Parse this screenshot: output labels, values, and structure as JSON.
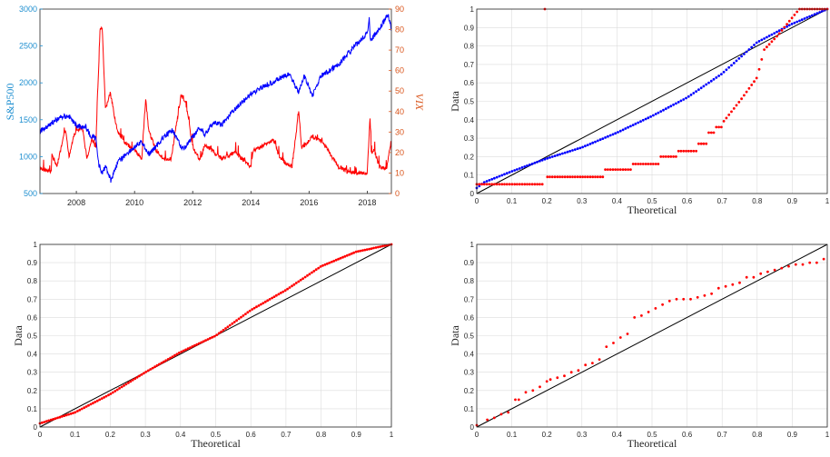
{
  "chart_data": [
    {
      "type": "line",
      "x_axis": {
        "type": "date",
        "range": [
          "2006-10-01",
          "2018-10-31"
        ],
        "ticks": [
          "2008",
          "2010",
          "2012",
          "2014",
          "2016",
          "2018"
        ]
      },
      "y_left": {
        "label": "S&P500",
        "range": [
          500,
          3000
        ],
        "ticks": [
          "500",
          "1000",
          "1500",
          "2000",
          "2500",
          "3000"
        ],
        "color": "#1f8fd0"
      },
      "y_right": {
        "label": "VIX",
        "range": [
          0,
          90
        ],
        "ticks": [
          "0",
          "10",
          "20",
          "30",
          "40",
          "50",
          "60",
          "70",
          "80",
          "90"
        ],
        "color": "#d95319"
      },
      "grid": false,
      "series": [
        {
          "axis": "left",
          "color": "#0000ff",
          "points": [
            [
              "2006-10-01",
              1340
            ],
            [
              "2007-02-01",
              1440
            ],
            [
              "2007-07-01",
              1540
            ],
            [
              "2007-10-01",
              1550
            ],
            [
              "2008-01-01",
              1420
            ],
            [
              "2008-05-01",
              1400
            ],
            [
              "2008-07-01",
              1270
            ],
            [
              "2008-09-01",
              1250
            ],
            [
              "2008-10-10",
              900
            ],
            [
              "2008-11-20",
              760
            ],
            [
              "2009-01-01",
              880
            ],
            [
              "2009-03-09",
              680
            ],
            [
              "2009-06-01",
              920
            ],
            [
              "2009-10-01",
              1050
            ],
            [
              "2010-04-01",
              1200
            ],
            [
              "2010-07-01",
              1030
            ],
            [
              "2010-12-31",
              1260
            ],
            [
              "2011-04-30",
              1360
            ],
            [
              "2011-08-08",
              1120
            ],
            [
              "2011-10-01",
              1130
            ],
            [
              "2011-12-31",
              1260
            ],
            [
              "2012-04-01",
              1400
            ],
            [
              "2012-06-01",
              1300
            ],
            [
              "2012-09-15",
              1460
            ],
            [
              "2012-12-31",
              1430
            ],
            [
              "2013-06-01",
              1630
            ],
            [
              "2013-12-31",
              1850
            ],
            [
              "2014-06-01",
              1950
            ],
            [
              "2014-12-31",
              2060
            ],
            [
              "2015-05-01",
              2120
            ],
            [
              "2015-08-25",
              1870
            ],
            [
              "2015-11-01",
              2090
            ],
            [
              "2016-02-11",
              1830
            ],
            [
              "2016-06-01",
              2090
            ],
            [
              "2016-12-31",
              2240
            ],
            [
              "2017-06-01",
              2430
            ],
            [
              "2017-12-31",
              2680
            ],
            [
              "2018-01-26",
              2870
            ],
            [
              "2018-02-08",
              2580
            ],
            [
              "2018-04-01",
              2640
            ],
            [
              "2018-06-01",
              2720
            ],
            [
              "2018-09-20",
              2930
            ],
            [
              "2018-10-31",
              2710
            ]
          ]
        },
        {
          "axis": "right",
          "color": "#ff0000",
          "points": [
            [
              "2006-10-01",
              12
            ],
            [
              "2007-02-20",
              11
            ],
            [
              "2007-03-01",
              19
            ],
            [
              "2007-05-01",
              13
            ],
            [
              "2007-08-16",
              31
            ],
            [
              "2007-10-01",
              18
            ],
            [
              "2007-11-26",
              28
            ],
            [
              "2008-01-22",
              31
            ],
            [
              "2008-03-17",
              32
            ],
            [
              "2008-05-15",
              17
            ],
            [
              "2008-07-15",
              27
            ],
            [
              "2008-09-01",
              22
            ],
            [
              "2008-10-24",
              80
            ],
            [
              "2008-11-20",
              81
            ],
            [
              "2008-12-31",
              41
            ],
            [
              "2009-03-01",
              49
            ],
            [
              "2009-06-01",
              30
            ],
            [
              "2009-09-01",
              25
            ],
            [
              "2009-12-31",
              21
            ],
            [
              "2010-04-01",
              17
            ],
            [
              "2010-05-20",
              46
            ],
            [
              "2010-07-01",
              30
            ],
            [
              "2010-10-01",
              21
            ],
            [
              "2010-12-31",
              17
            ],
            [
              "2011-04-01",
              16
            ],
            [
              "2011-08-08",
              48
            ],
            [
              "2011-10-03",
              45
            ],
            [
              "2011-12-31",
              23
            ],
            [
              "2012-04-01",
              16
            ],
            [
              "2012-06-01",
              24
            ],
            [
              "2012-12-31",
              17
            ],
            [
              "2013-06-20",
              20
            ],
            [
              "2013-12-31",
              13
            ],
            [
              "2014-02-03",
              21
            ],
            [
              "2014-10-15",
              26
            ],
            [
              "2014-12-31",
              17
            ],
            [
              "2015-06-01",
              13
            ],
            [
              "2015-08-24",
              40
            ],
            [
              "2015-10-01",
              22
            ],
            [
              "2016-02-11",
              28
            ],
            [
              "2016-06-24",
              25
            ],
            [
              "2016-12-31",
              13
            ],
            [
              "2017-06-01",
              10
            ],
            [
              "2017-12-31",
              10
            ],
            [
              "2018-02-05",
              37
            ],
            [
              "2018-02-20",
              20
            ],
            [
              "2018-04-01",
              21
            ],
            [
              "2018-06-01",
              13
            ],
            [
              "2018-09-01",
              12
            ],
            [
              "2018-10-24",
              25
            ],
            [
              "2018-10-31",
              21
            ]
          ]
        }
      ]
    },
    {
      "type": "scatter",
      "xlabel": "Theoretical",
      "ylabel": "Data",
      "xlim": [
        0,
        1
      ],
      "ylim": [
        0,
        1
      ],
      "xticks": [
        "0",
        "0.1",
        "0.2",
        "0.3",
        "0.4",
        "0.5",
        "0.6",
        "0.7",
        "0.8",
        "0.9",
        "1"
      ],
      "yticks": [
        "0",
        "0.1",
        "0.2",
        "0.3",
        "0.4",
        "0.5",
        "0.6",
        "0.7",
        "0.8",
        "0.9",
        "1"
      ],
      "grid": true,
      "reference_line": [
        [
          0,
          0
        ],
        [
          1,
          1
        ]
      ],
      "series": [
        {
          "color": "#0000ff",
          "curve": [
            [
              0,
              0.03
            ],
            [
              0.02,
              0.06
            ],
            [
              0.1,
              0.12
            ],
            [
              0.2,
              0.19
            ],
            [
              0.3,
              0.25
            ],
            [
              0.4,
              0.33
            ],
            [
              0.5,
              0.42
            ],
            [
              0.6,
              0.52
            ],
            [
              0.7,
              0.65
            ],
            [
              0.8,
              0.82
            ],
            [
              0.9,
              0.92
            ],
            [
              1,
              1
            ]
          ],
          "count": 140
        },
        {
          "color": "#ff0000",
          "steps": [
            [
              0,
              0.19,
              0.05
            ],
            [
              0.2,
              0.36,
              0.09
            ],
            [
              0.36,
              0.44,
              0.13
            ],
            [
              0.44,
              0.52,
              0.16
            ],
            [
              0.52,
              0.57,
              0.2
            ],
            [
              0.57,
              0.63,
              0.23
            ],
            [
              0.63,
              0.66,
              0.27
            ],
            [
              0.66,
              0.68,
              0.33
            ],
            [
              0.68,
              0.7,
              0.36
            ]
          ],
          "curve": [
            [
              0.7,
              0.38
            ],
            [
              0.75,
              0.5
            ],
            [
              0.8,
              0.63
            ],
            [
              0.82,
              0.78
            ],
            [
              0.86,
              0.86
            ],
            [
              0.89,
              0.93
            ],
            [
              0.92,
              1
            ],
            [
              1,
              1
            ]
          ],
          "count": 140
        }
      ]
    },
    {
      "type": "scatter",
      "xlabel": "Theoretical",
      "ylabel": "Data",
      "xlim": [
        0,
        1
      ],
      "ylim": [
        0,
        1
      ],
      "xticks": [
        "0",
        "0.1",
        "0.2",
        "0.3",
        "0.4",
        "0.5",
        "0.6",
        "0.7",
        "0.8",
        "0.9",
        "1"
      ],
      "yticks": [
        "0",
        "0.1",
        "0.2",
        "0.3",
        "0.4",
        "0.5",
        "0.6",
        "0.7",
        "0.8",
        "0.9",
        "1"
      ],
      "grid": true,
      "reference_line": [
        [
          0,
          0
        ],
        [
          1,
          1
        ]
      ],
      "series": [
        {
          "color": "#ff0000",
          "curve": [
            [
              0,
              0.02
            ],
            [
              0.1,
              0.08
            ],
            [
              0.2,
              0.18
            ],
            [
              0.3,
              0.3
            ],
            [
              0.4,
              0.41
            ],
            [
              0.5,
              0.5
            ],
            [
              0.55,
              0.57
            ],
            [
              0.6,
              0.64
            ],
            [
              0.7,
              0.75
            ],
            [
              0.8,
              0.88
            ],
            [
              0.9,
              0.96
            ],
            [
              1,
              1
            ]
          ],
          "count": 160
        }
      ]
    },
    {
      "type": "scatter",
      "xlabel": "Theoretical",
      "ylabel": "Data",
      "xlim": [
        0,
        1
      ],
      "ylim": [
        0,
        1
      ],
      "xticks": [
        "0",
        "0.1",
        "0.2",
        "0.3",
        "0.4",
        "0.5",
        "0.6",
        "0.7",
        "0.8",
        "0.9",
        "1"
      ],
      "yticks": [
        "0",
        "0.1",
        "0.2",
        "0.3",
        "0.4",
        "0.5",
        "0.6",
        "0.7",
        "0.8",
        "0.9",
        "1"
      ],
      "grid": true,
      "reference_line": [
        [
          0,
          0
        ],
        [
          1,
          1
        ]
      ],
      "series": [
        {
          "color": "#ff0000",
          "points": [
            [
              0.0,
              0.01
            ],
            [
              0.03,
              0.04
            ],
            [
              0.05,
              0.05
            ],
            [
              0.07,
              0.07
            ],
            [
              0.09,
              0.08
            ],
            [
              0.11,
              0.15
            ],
            [
              0.12,
              0.15
            ],
            [
              0.14,
              0.19
            ],
            [
              0.16,
              0.2
            ],
            [
              0.18,
              0.22
            ],
            [
              0.2,
              0.25
            ],
            [
              0.21,
              0.26
            ],
            [
              0.23,
              0.27
            ],
            [
              0.25,
              0.28
            ],
            [
              0.27,
              0.3
            ],
            [
              0.29,
              0.31
            ],
            [
              0.31,
              0.34
            ],
            [
              0.33,
              0.35
            ],
            [
              0.35,
              0.37
            ],
            [
              0.37,
              0.44
            ],
            [
              0.39,
              0.46
            ],
            [
              0.41,
              0.49
            ],
            [
              0.43,
              0.51
            ],
            [
              0.45,
              0.6
            ],
            [
              0.47,
              0.61
            ],
            [
              0.49,
              0.63
            ],
            [
              0.51,
              0.65
            ],
            [
              0.53,
              0.67
            ],
            [
              0.55,
              0.69
            ],
            [
              0.57,
              0.7
            ],
            [
              0.59,
              0.7
            ],
            [
              0.61,
              0.7
            ],
            [
              0.63,
              0.71
            ],
            [
              0.65,
              0.72
            ],
            [
              0.67,
              0.73
            ],
            [
              0.69,
              0.76
            ],
            [
              0.71,
              0.77
            ],
            [
              0.73,
              0.78
            ],
            [
              0.75,
              0.79
            ],
            [
              0.77,
              0.82
            ],
            [
              0.79,
              0.82
            ],
            [
              0.81,
              0.84
            ],
            [
              0.83,
              0.85
            ],
            [
              0.85,
              0.86
            ],
            [
              0.87,
              0.87
            ],
            [
              0.89,
              0.88
            ],
            [
              0.91,
              0.89
            ],
            [
              0.93,
              0.89
            ],
            [
              0.95,
              0.9
            ],
            [
              0.97,
              0.9
            ],
            [
              0.99,
              0.92
            ]
          ]
        }
      ]
    }
  ]
}
